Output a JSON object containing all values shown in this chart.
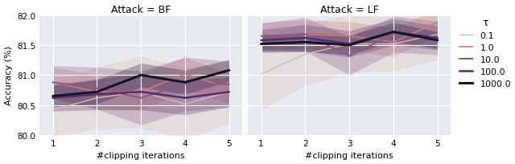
{
  "title_bf": "Attack = BF",
  "title_lf": "Attack = LF",
  "xlabel": "#clipping iterations",
  "ylabel": "Accuracy (%)",
  "x": [
    1,
    2,
    3,
    4,
    5
  ],
  "tau_labels": [
    "0.1",
    "1.0",
    "10.0",
    "100.0",
    "1000.0"
  ],
  "tau_legend_title": "τ",
  "colors": [
    "#ddb8a8",
    "#cc7878",
    "#8a5a8a",
    "#5a2a6a",
    "#15152a"
  ],
  "linewidths": [
    1.0,
    1.2,
    1.5,
    1.8,
    2.2
  ],
  "bf_means": [
    [
      80.42,
      80.62,
      80.72,
      80.52,
      80.72
    ],
    [
      80.88,
      80.72,
      80.72,
      81.02,
      80.78
    ],
    [
      80.88,
      80.78,
      80.62,
      80.85,
      80.85
    ],
    [
      80.62,
      80.68,
      80.72,
      80.62,
      80.72
    ],
    [
      80.65,
      80.72,
      81.0,
      80.88,
      81.08
    ]
  ],
  "bf_stds": [
    [
      0.45,
      0.52,
      0.6,
      0.6,
      0.52
    ],
    [
      0.25,
      0.28,
      0.3,
      0.28,
      0.25
    ],
    [
      0.28,
      0.35,
      0.45,
      0.45,
      0.38
    ],
    [
      0.22,
      0.26,
      0.3,
      0.28,
      0.25
    ],
    [
      0.18,
      0.2,
      0.2,
      0.2,
      0.18
    ]
  ],
  "lf_means": [
    [
      81.02,
      81.35,
      81.52,
      81.52,
      81.68
    ],
    [
      81.65,
      81.68,
      81.65,
      81.55,
      81.88
    ],
    [
      81.65,
      81.68,
      81.32,
      81.68,
      81.62
    ],
    [
      81.58,
      81.62,
      81.52,
      81.72,
      81.62
    ],
    [
      81.52,
      81.55,
      81.5,
      81.72,
      81.58
    ]
  ],
  "lf_stds": [
    [
      0.6,
      0.52,
      0.48,
      0.45,
      0.42
    ],
    [
      0.22,
      0.24,
      0.24,
      0.24,
      0.22
    ],
    [
      0.22,
      0.28,
      0.32,
      0.3,
      0.28
    ],
    [
      0.18,
      0.22,
      0.22,
      0.22,
      0.2
    ],
    [
      0.14,
      0.16,
      0.16,
      0.16,
      0.14
    ]
  ],
  "ylim": [
    80.0,
    82.0
  ],
  "yticks": [
    80.0,
    80.5,
    81.0,
    81.5,
    82.0
  ],
  "bg_color": "#e8eaf2",
  "alpha_fill": 0.28,
  "figsize": [
    6.4,
    2.05
  ],
  "dpi": 100
}
